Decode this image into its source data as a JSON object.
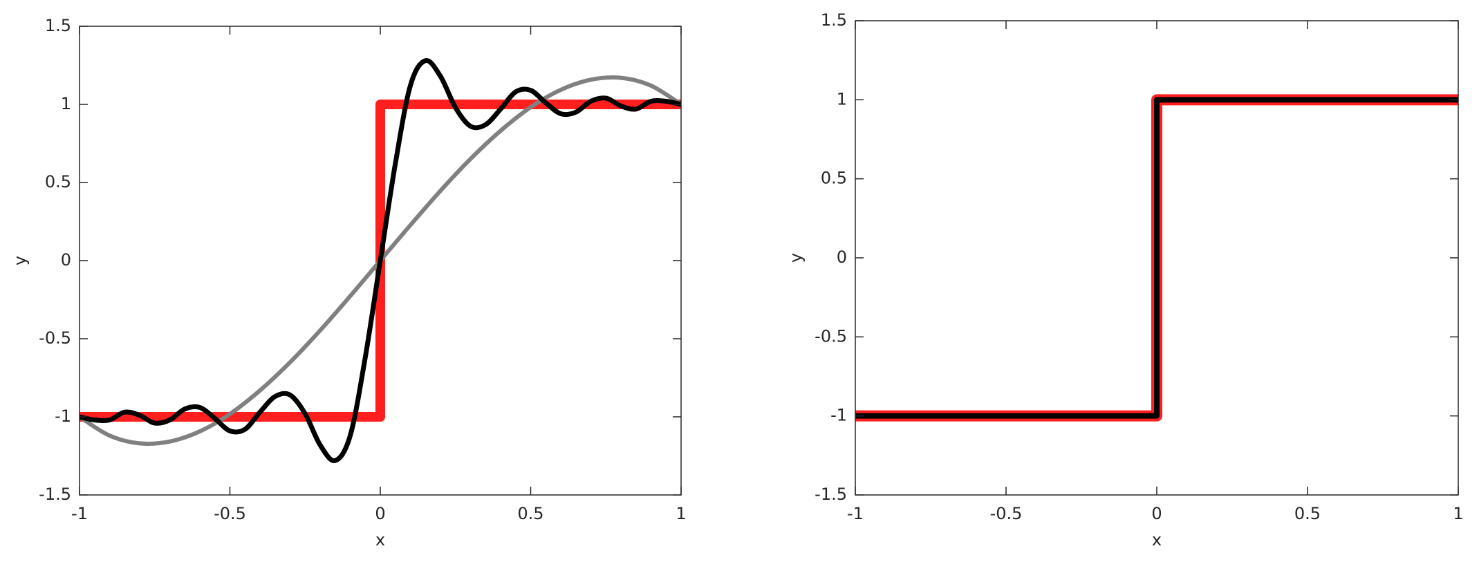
{
  "chart_data": [
    {
      "type": "line",
      "xlabel": "x",
      "ylabel": "y",
      "xlim": [
        -1,
        1
      ],
      "ylim": [
        -1.5,
        1.5
      ],
      "xticks": [
        -1,
        -0.5,
        0,
        0.5,
        1
      ],
      "yticks": [
        -1.5,
        -1,
        -0.5,
        0,
        0.5,
        1,
        1.5
      ],
      "series": [
        {
          "color": "#ff1f1f",
          "width": 14,
          "x": [
            -1,
            0,
            0,
            1
          ],
          "values": [
            -1,
            -1,
            1,
            1
          ]
        },
        {
          "color": "#808080",
          "width": 6,
          "x": [
            -1,
            -0.9,
            -0.8,
            -0.7,
            -0.6,
            -0.5,
            -0.4,
            -0.3,
            -0.2,
            -0.1,
            0,
            0.1,
            0.2,
            0.3,
            0.4,
            0.5,
            0.6,
            0.7,
            0.8,
            0.9,
            1
          ],
          "values": [
            -1,
            -1.12,
            -1.17,
            -1.158,
            -1.093,
            -0.982,
            -0.831,
            -0.651,
            -0.447,
            -0.227,
            0,
            0.227,
            0.447,
            0.651,
            0.831,
            0.982,
            1.093,
            1.158,
            1.17,
            1.12,
            1
          ]
        },
        {
          "color": "#000000",
          "width": 7,
          "x": [
            -1,
            -0.95,
            -0.9,
            -0.85,
            -0.8,
            -0.75,
            -0.7,
            -0.65,
            -0.6,
            -0.55,
            -0.5,
            -0.45,
            -0.4,
            -0.35,
            -0.3,
            -0.25,
            -0.2,
            -0.15,
            -0.1,
            -0.05,
            0,
            0.05,
            0.1,
            0.15,
            0.2,
            0.25,
            0.3,
            0.35,
            0.4,
            0.45,
            0.5,
            0.55,
            0.6,
            0.65,
            0.7,
            0.75,
            0.8,
            0.85,
            0.9,
            0.95,
            1
          ],
          "values": [
            -1,
            -1.02,
            -1.02,
            -0.97,
            -0.99,
            -1.04,
            -1.02,
            -0.95,
            -0.94,
            -1.01,
            -1.09,
            -1.08,
            -0.97,
            -0.87,
            -0.86,
            -0.98,
            -1.18,
            -1.28,
            -1.12,
            -0.62,
            0,
            0.62,
            1.12,
            1.28,
            1.18,
            0.98,
            0.86,
            0.87,
            0.97,
            1.08,
            1.09,
            1.01,
            0.94,
            0.95,
            1.02,
            1.04,
            0.99,
            0.97,
            1.02,
            1.02,
            1
          ]
        }
      ]
    },
    {
      "type": "line",
      "xlabel": "x",
      "ylabel": "y",
      "xlim": [
        -1,
        1
      ],
      "ylim": [
        -1.5,
        1.5
      ],
      "xticks": [
        -1,
        -0.5,
        0,
        0.5,
        1
      ],
      "yticks": [
        -1.5,
        -1,
        -0.5,
        0,
        0.5,
        1,
        1.5
      ],
      "series": [
        {
          "color": "#ff1f1f",
          "width": 16,
          "x": [
            -1,
            0,
            0,
            1
          ],
          "values": [
            -1,
            -1,
            1,
            1
          ]
        },
        {
          "color": "#000000",
          "width": 8,
          "x": [
            -1,
            0,
            0,
            1
          ],
          "values": [
            -1,
            -1,
            1,
            1
          ]
        }
      ]
    }
  ]
}
